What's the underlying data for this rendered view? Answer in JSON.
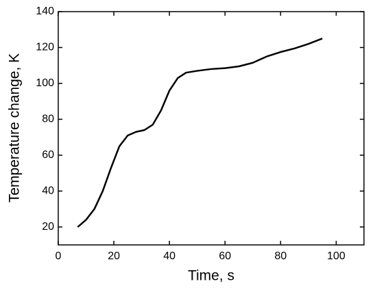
{
  "chart_data": {
    "type": "line",
    "x_label": "Time, s",
    "y_label": "Temperature change, K",
    "x": [
      7,
      10,
      13,
      16,
      19,
      22,
      25,
      28,
      31,
      34,
      37,
      40,
      43,
      46,
      50,
      55,
      60,
      65,
      70,
      75,
      80,
      85,
      90,
      95
    ],
    "series": [
      {
        "color": "#000000",
        "values": [
          20,
          24,
          30,
          40,
          53,
          65,
          71,
          73,
          74,
          77,
          85,
          96,
          103,
          106,
          107,
          108,
          108.5,
          109.5,
          111.5,
          115,
          117.5,
          119.5,
          122,
          125
        ]
      }
    ],
    "xlim": [
      0,
      110
    ],
    "xticks": [
      0,
      20,
      40,
      60,
      80,
      100
    ],
    "ylim": [
      10,
      140
    ],
    "yticks": [
      20,
      40,
      60,
      80,
      100,
      120,
      140
    ]
  }
}
